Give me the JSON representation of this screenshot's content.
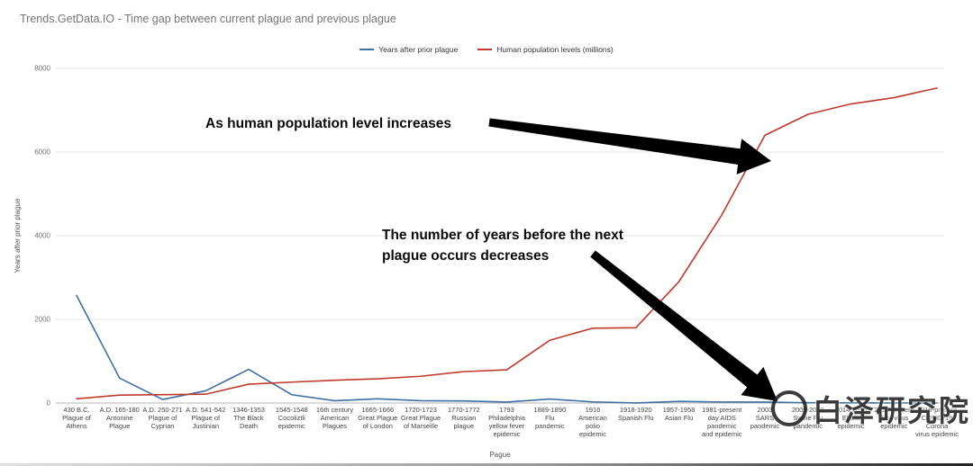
{
  "title": "Trends.GetData.IO - Time gap between current plague and previous plague",
  "legend": [
    {
      "label": "Years after prior plague",
      "color": "#3e6fa3"
    },
    {
      "label": "Human population levels (millions)",
      "color": "#c0392b"
    }
  ],
  "annotations": {
    "population_note": "As human population level increases",
    "gap_note_line1": "The number of years before the next",
    "gap_note_line2": "plague occurs decreases"
  },
  "watermark": {
    "icon": "circle-logo",
    "text": "白泽研究院"
  },
  "chart_data": {
    "type": "line",
    "title": "Trends.GetData.IO - Time gap between current plague and previous plague",
    "xlabel": "Pague",
    "ylabel": "Years after prior plague",
    "ylim": [
      0,
      8000
    ],
    "yticks": [
      0,
      2000,
      4000,
      6000,
      8000
    ],
    "grid": true,
    "legend_position": "top-center",
    "categories": [
      [
        "430 B.C.",
        "Plague of",
        "Athens"
      ],
      [
        "A.D. 165-180",
        "Antonine",
        "Plague"
      ],
      [
        "A.D. 250-271",
        "Plague of",
        "Cyprian"
      ],
      [
        "A.D. 541-542",
        "Plague of",
        "Justinian"
      ],
      [
        "1346-1353",
        "The Black",
        "Death"
      ],
      [
        "1545-1548",
        "Cocoliztli",
        "epidemic"
      ],
      [
        "16th century",
        "American",
        "Plagues"
      ],
      [
        "1665-1666",
        "Great Plague",
        "of London"
      ],
      [
        "1720-1723",
        "Great Plague",
        "of Marseille"
      ],
      [
        "1770-1772",
        "Russian",
        "plague"
      ],
      [
        "1793",
        "Philadelphia",
        "yellow fever",
        "epidemic"
      ],
      [
        "1889-1890",
        "Flu",
        "pandemic"
      ],
      [
        "1916",
        "American",
        "polio",
        "epidemic"
      ],
      [
        "1918-1920",
        "Spanish Flu"
      ],
      [
        "1957-1958",
        "Asian Flu"
      ],
      [
        "1981-present",
        "day AIDS",
        "pandemic",
        "and epidemic"
      ],
      [
        "2003",
        "SARS",
        "pandemic"
      ],
      [
        "2009-2010",
        "Swine Flu",
        "pandemic"
      ],
      [
        "2014-2016",
        "Ebola",
        "epidemic"
      ],
      [
        "2015-present",
        "Zika virus",
        "epidemic"
      ],
      [
        "2019-present",
        "COVID-19",
        "Corona",
        "virus epidemic"
      ]
    ],
    "series": [
      {
        "name": "Years after prior plague",
        "color": "#3e6fa3",
        "values": [
          2570,
          595,
          85,
          291,
          805,
          199,
          55,
          100,
          55,
          50,
          23,
          96,
          27,
          2,
          39,
          24,
          22,
          6,
          5,
          1,
          4
        ]
      },
      {
        "name": "Human population levels (millions)",
        "color": "#c0392b",
        "values": [
          100,
          190,
          200,
          210,
          450,
          500,
          545,
          580,
          640,
          750,
          795,
          1500,
          1790,
          1800,
          2900,
          4500,
          6400,
          6900,
          7150,
          7300,
          7530
        ]
      }
    ]
  }
}
